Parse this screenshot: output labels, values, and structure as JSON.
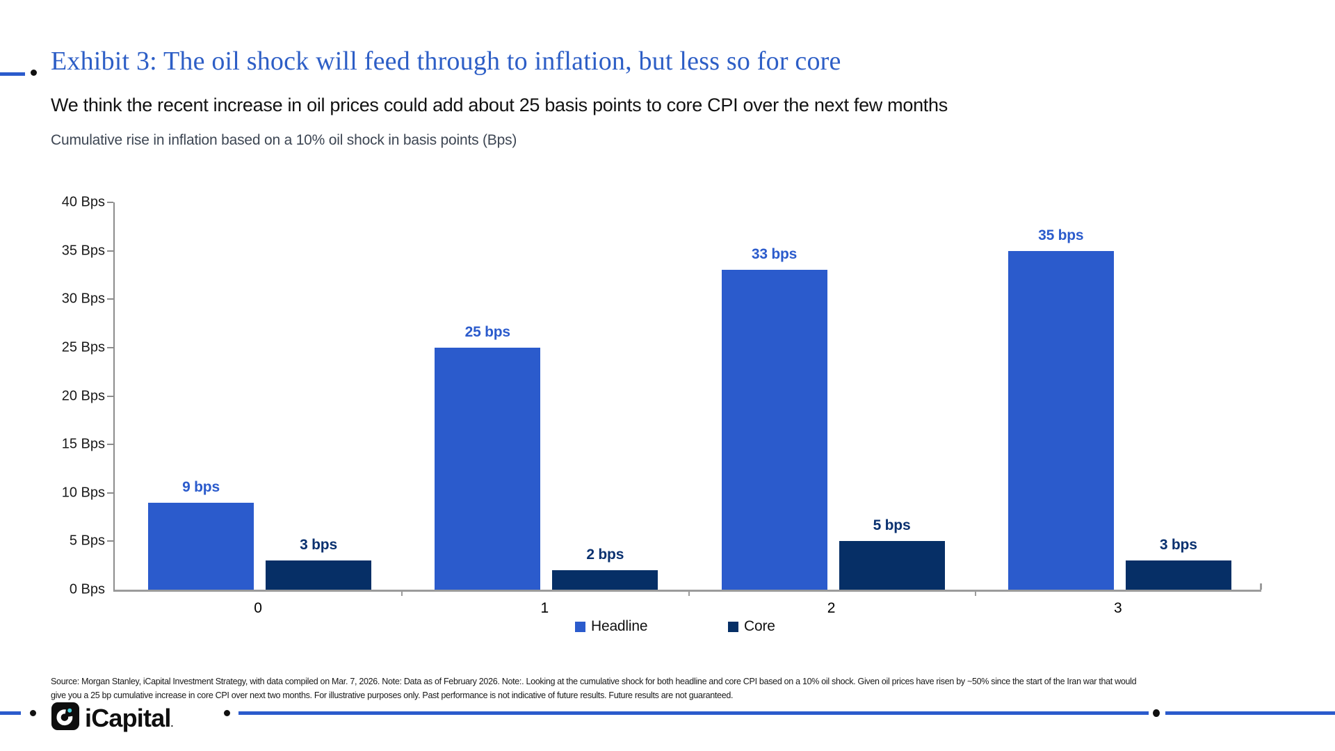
{
  "header": {
    "exhibit_title": "Exhibit 3: The oil shock will feed through to inflation, but less so for core",
    "subtitle": "We think the recent increase in oil prices could add about 25 basis points to core CPI over the next few months",
    "chart_note": "Cumulative rise in inflation based on a 10% oil shock in basis points (Bps)"
  },
  "chart_data": {
    "type": "bar",
    "title": "Cumulative rise in inflation based on a 10% oil shock in basis points (Bps)",
    "categories": [
      "0",
      "1",
      "2",
      "3"
    ],
    "series": [
      {
        "name": "Headline",
        "values": [
          9,
          25,
          33,
          35
        ],
        "labels": [
          "9 bps",
          "25 bps",
          "33 bps",
          "35 bps"
        ],
        "color": "#2B5BCC",
        "label_color": "#2B5BCC"
      },
      {
        "name": "Core",
        "values": [
          3,
          2,
          5,
          3
        ],
        "labels": [
          "3 bps",
          "2 bps",
          "5 bps",
          "3 bps"
        ],
        "color": "#062F66",
        "label_color": "#0A3170"
      }
    ],
    "xlabel": "",
    "ylabel": "",
    "ylim": [
      0,
      40
    ],
    "yticks": [
      0,
      5,
      10,
      15,
      20,
      25,
      30,
      35,
      40
    ],
    "ytick_suffix": " Bps",
    "grid": false,
    "legend_position": "bottom"
  },
  "legend": {
    "items": [
      {
        "label": "Headline",
        "color": "#2B5BCC"
      },
      {
        "label": "Core",
        "color": "#062F66"
      }
    ]
  },
  "footer": {
    "line1": "Source: Morgan Stanley, iCapital Investment Strategy, with data compiled on Mar. 7, 2026. Note: Data as of February 2026. Note:. Looking at the cumulative shock for both headline and core CPI based on a 10% oil shock. Given oil prices have risen by ~50% since the start of the Iran war that would",
    "line2": "give you a 25 bp cumulative increase in core CPI over next two months. For illustrative purposes only. Past performance is not indicative of future results. Future results are not guaranteed."
  },
  "brand": {
    "wordmark": "iCapital",
    "mark_dot": ".",
    "logo_bg": "#0E0E0E",
    "logo_accent": "#49D3DF"
  },
  "colors": {
    "accent_blue": "#2B5BCC",
    "core_navy": "#062F66",
    "title_blue": "#2D5EC6",
    "axis_gray": "#8C8C8C"
  }
}
